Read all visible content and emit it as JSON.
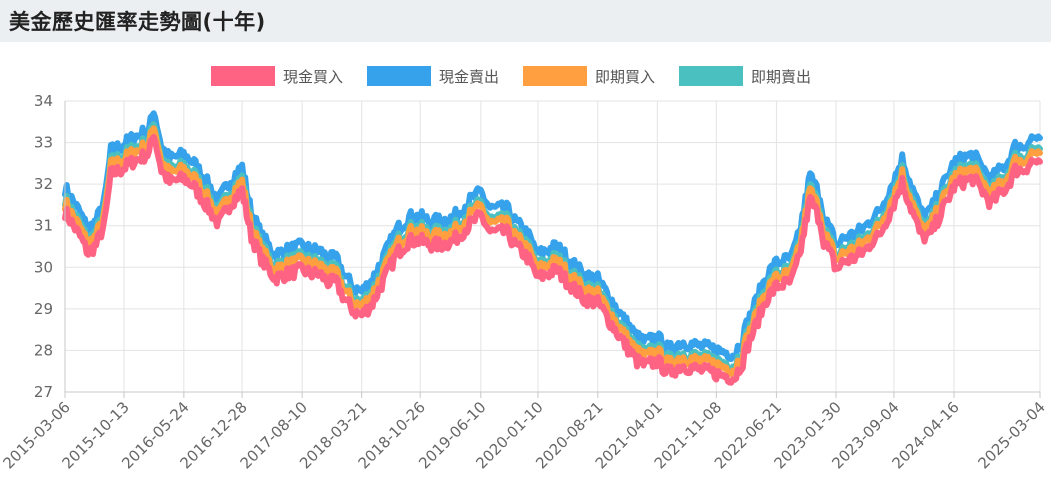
{
  "page": {
    "title": "美金歷史匯率走勢圖(十年)"
  },
  "chart_data": {
    "type": "area",
    "title": "",
    "xlabel": "",
    "ylabel": "",
    "ylim": [
      27,
      34
    ],
    "y_ticks": [
      27,
      28,
      29,
      30,
      31,
      32,
      33,
      34
    ],
    "x_range": [
      "2015-03-06",
      "2025-03-04"
    ],
    "x_tick_labels": [
      "2015-03-06",
      "2015-10-13",
      "2016-05-24",
      "2016-12-28",
      "2017-08-10",
      "2018-03-21",
      "2018-10-26",
      "2019-06-10",
      "2020-01-10",
      "2020-08-21",
      "2021-04-01",
      "2021-11-08",
      "2022-06-21",
      "2023-01-30",
      "2023-09-04",
      "2024-04-16",
      "2025-03-04"
    ],
    "grid": true,
    "legend_position": "top",
    "base_series": {
      "x": [
        "2015-03-06",
        "2015-05-01",
        "2015-06-01",
        "2015-07-01",
        "2015-08-01",
        "2015-08-25",
        "2015-10-01",
        "2015-11-15",
        "2016-01-15",
        "2016-02-01",
        "2016-03-01",
        "2016-04-01",
        "2016-05-24",
        "2016-07-01",
        "2016-09-01",
        "2016-10-01",
        "2016-11-15",
        "2016-12-28",
        "2017-02-01",
        "2017-03-15",
        "2017-05-01",
        "2017-06-15",
        "2017-08-10",
        "2017-09-15",
        "2017-10-15",
        "2017-11-15",
        "2017-12-15",
        "2018-01-15",
        "2018-02-20",
        "2018-03-21",
        "2018-05-01",
        "2018-06-15",
        "2018-08-01",
        "2018-09-15",
        "2018-10-26",
        "2018-12-01",
        "2019-01-15",
        "2019-03-01",
        "2019-05-01",
        "2019-06-10",
        "2019-07-15",
        "2019-09-15",
        "2019-10-15",
        "2019-12-01",
        "2020-01-10",
        "2020-03-20",
        "2020-05-01",
        "2020-07-01",
        "2020-08-21",
        "2020-10-01",
        "2020-12-01",
        "2021-01-15",
        "2021-02-15",
        "2021-04-01",
        "2021-05-15",
        "2021-07-01",
        "2021-09-01",
        "2021-11-08",
        "2022-01-15",
        "2022-02-15",
        "2022-03-01",
        "2022-04-01",
        "2022-05-15",
        "2022-06-21",
        "2022-08-15",
        "2022-09-15",
        "2022-10-25",
        "2022-12-01",
        "2022-12-15",
        "2023-01-15",
        "2023-01-30",
        "2023-03-01",
        "2023-04-15",
        "2023-05-25",
        "2023-06-15",
        "2023-07-10",
        "2023-09-04",
        "2023-10-05",
        "2023-11-01",
        "2023-12-15",
        "2024-01-15",
        "2024-02-15",
        "2024-04-16",
        "2024-05-15",
        "2024-06-25",
        "2024-08-01",
        "2024-09-01",
        "2024-10-01",
        "2024-11-01",
        "2024-12-01",
        "2025-01-01",
        "2025-02-01",
        "2025-03-04"
      ],
      "values": [
        31.6,
        31.0,
        30.6,
        30.8,
        31.3,
        32.5,
        32.6,
        32.8,
        33.0,
        33.5,
        32.6,
        32.3,
        32.4,
        32.2,
        31.6,
        31.3,
        31.8,
        32.1,
        31.0,
        30.4,
        30.0,
        30.1,
        30.2,
        30.1,
        30.1,
        29.9,
        29.9,
        29.5,
        29.2,
        29.1,
        29.4,
        30.0,
        30.6,
        30.9,
        30.9,
        30.8,
        30.8,
        30.9,
        31.3,
        31.5,
        31.1,
        31.1,
        30.8,
        30.5,
        30.0,
        30.2,
        29.9,
        29.5,
        29.4,
        29.0,
        28.4,
        28.0,
        27.9,
        28.0,
        27.7,
        27.9,
        27.8,
        27.7,
        27.6,
        28.0,
        28.3,
        28.8,
        29.5,
        29.8,
        29.9,
        30.5,
        31.9,
        31.4,
        30.9,
        30.5,
        30.2,
        30.4,
        30.5,
        30.7,
        30.9,
        31.0,
        31.8,
        32.3,
        31.8,
        31.0,
        31.0,
        31.4,
        32.2,
        32.3,
        32.4,
        32.1,
        31.8,
        32.0,
        32.2,
        32.6,
        32.6,
        32.8,
        32.8
      ]
    },
    "series": [
      {
        "name": "現金買入",
        "color": "#ff6384",
        "offset": -0.26
      },
      {
        "name": "現金賣出",
        "color": "#36a2eb",
        "offset": 0.31
      },
      {
        "name": "即期買入",
        "color": "#ff9f40",
        "offset": -0.05
      },
      {
        "name": "即期賣出",
        "color": "#4bc0c0",
        "offset": 0.05
      }
    ],
    "colors": {
      "grid": "#e3e3e3",
      "axis": "#c8c8c8",
      "tick_text": "#666666"
    }
  }
}
